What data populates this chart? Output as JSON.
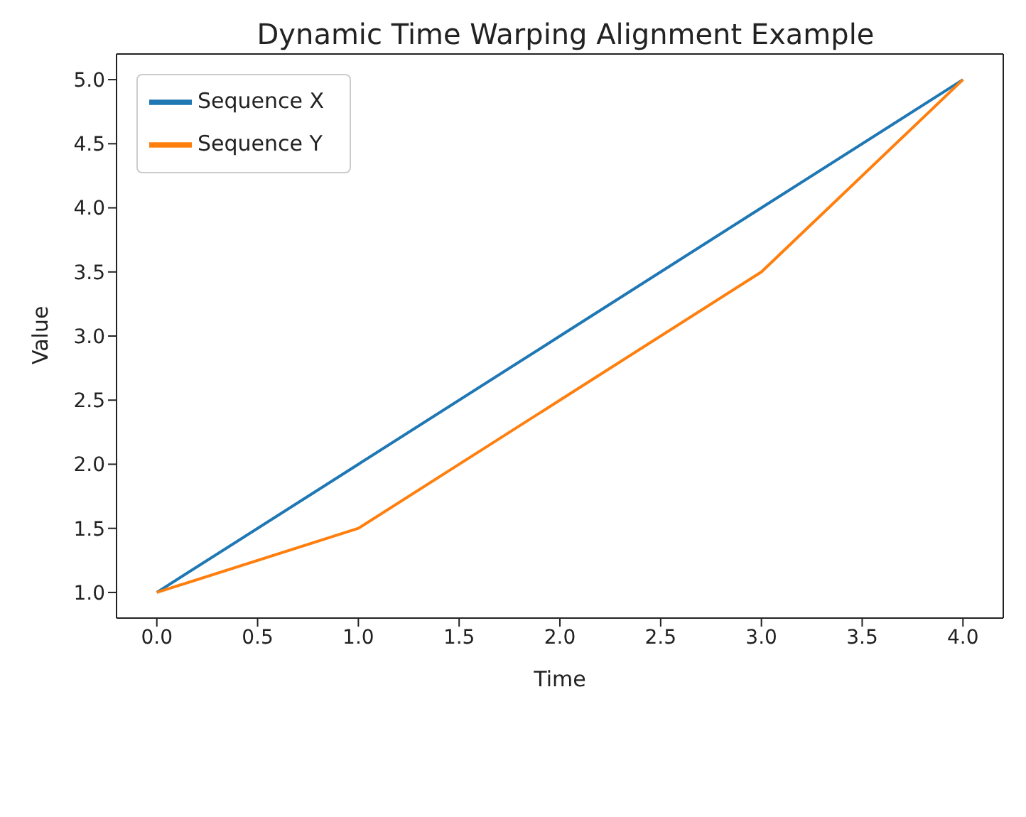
{
  "chart_data": {
    "type": "line",
    "title": "Dynamic Time Warping Alignment Example",
    "xlabel": "Time",
    "ylabel": "Value",
    "x": [
      0,
      1,
      2,
      3,
      4
    ],
    "series": [
      {
        "name": "Sequence X",
        "color": "#1f77b4",
        "values": [
          1,
          2,
          3,
          4,
          5
        ]
      },
      {
        "name": "Sequence Y",
        "color": "#ff7f0e",
        "values": [
          1,
          1.5,
          2.5,
          3.5,
          5
        ]
      }
    ],
    "xlim": [
      -0.2,
      4.2
    ],
    "xticks": [
      {
        "value": 0,
        "label": "0.0"
      },
      {
        "value": 0.5,
        "label": "0.5"
      },
      {
        "value": 1,
        "label": "1.0"
      },
      {
        "value": 1.5,
        "label": "1.5"
      },
      {
        "value": 2,
        "label": "2.0"
      },
      {
        "value": 2.5,
        "label": "2.5"
      },
      {
        "value": 3,
        "label": "3.0"
      },
      {
        "value": 3.5,
        "label": "3.5"
      },
      {
        "value": 4,
        "label": "4.0"
      }
    ],
    "ylim": [
      0.8,
      5.2
    ],
    "yticks": [
      {
        "value": 1,
        "label": "1.0"
      },
      {
        "value": 1.5,
        "label": "1.5"
      },
      {
        "value": 2,
        "label": "2.0"
      },
      {
        "value": 2.5,
        "label": "2.5"
      },
      {
        "value": 3,
        "label": "3.0"
      },
      {
        "value": 3.5,
        "label": "3.5"
      },
      {
        "value": 4,
        "label": "4.0"
      },
      {
        "value": 4.5,
        "label": "4.5"
      },
      {
        "value": 5,
        "label": "5.0"
      }
    ],
    "grid": false,
    "legend": "top left",
    "marker": "none",
    "line_style": "solid"
  }
}
